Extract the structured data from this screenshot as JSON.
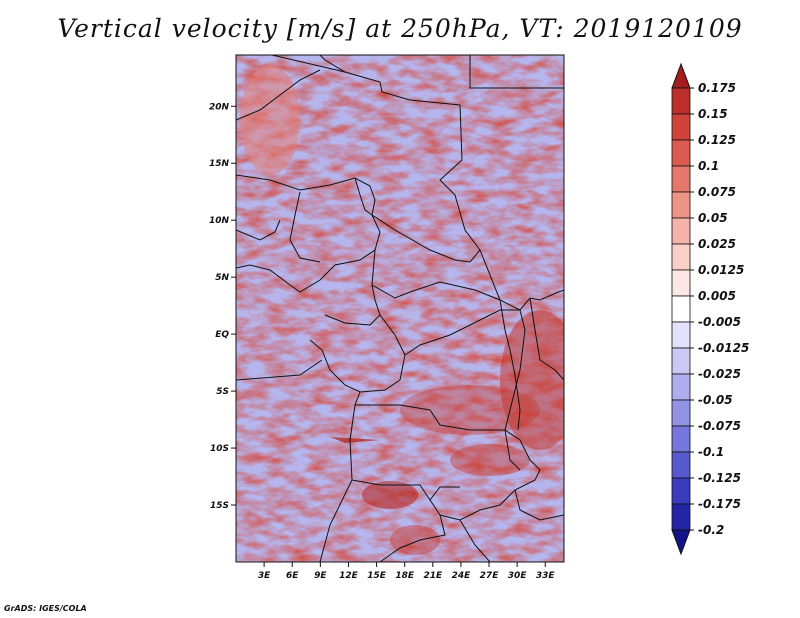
{
  "title": "Vertical velocity [m/s] at 250hPa, VT: 2019120109",
  "credit": "GrADS: IGES/COLA",
  "map": {
    "lat_ticks": [
      "20N",
      "15N",
      "10N",
      "5N",
      "EQ",
      "5S",
      "10S",
      "15S"
    ],
    "lat_values": [
      20,
      15,
      10,
      5,
      0,
      -5,
      -10,
      -15
    ],
    "lon_ticks": [
      "3E",
      "6E",
      "9E",
      "12E",
      "15E",
      "18E",
      "21E",
      "24E",
      "27E",
      "30E",
      "33E"
    ],
    "lon_values": [
      3,
      6,
      9,
      12,
      15,
      18,
      21,
      24,
      27,
      30,
      33
    ],
    "lon_range": [
      0,
      35
    ],
    "lat_range": [
      -20,
      24.5
    ]
  },
  "colorbar": {
    "labels": [
      "0.175",
      "0.15",
      "0.125",
      "0.1",
      "0.075",
      "0.05",
      "0.025",
      "0.0125",
      "0.005",
      "-0.005",
      "-0.0125",
      "-0.025",
      "-0.05",
      "-0.075",
      "-0.1",
      "-0.125",
      "-0.175",
      "-0.2"
    ],
    "colors": [
      "#a51c1c",
      "#bd2f2a",
      "#cf433a",
      "#dc5b50",
      "#e6776b",
      "#ee9487",
      "#f4b3a8",
      "#f8d0c8",
      "#fbe8e4",
      "#ffffff",
      "#e2e2fa",
      "#c9c9f4",
      "#aeaeee",
      "#9393e6",
      "#7676dc",
      "#5858cf",
      "#3b3bbd",
      "#2424a6",
      "#13138a"
    ],
    "top_color": "#a51c1c",
    "bottom_color": "#13138a"
  }
}
